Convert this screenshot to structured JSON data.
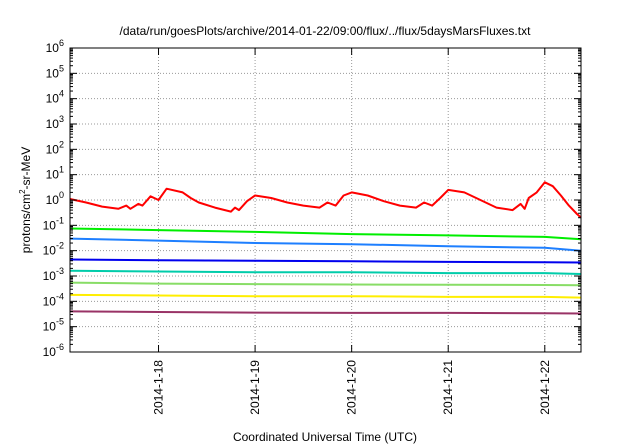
{
  "chart_data": {
    "type": "line",
    "title": "/data/run/goesPlots/archive/2014-01-22/09:00/flux/../flux/5daysMarsFluxes.txt",
    "xlabel": "Coordinated Universal Time (UTC)",
    "ylabel": {
      "prefix": "protons/cm",
      "superscript": "2",
      "suffix": "-sr-MeV"
    },
    "yscale": "log",
    "ylim": [
      1e-06,
      1000000.0
    ],
    "xlim": [
      "2014-01-17 02:00",
      "2014-01-22 09:00"
    ],
    "grid": "dotted",
    "legend": "none",
    "x_ticks": [
      "2014-1-18",
      "2014-1-19",
      "2014-1-20",
      "2014-1-21",
      "2014-1-22"
    ],
    "y_ticks": [
      {
        "base": "10",
        "exp": "-6"
      },
      {
        "base": "10",
        "exp": "-5"
      },
      {
        "base": "10",
        "exp": "-4"
      },
      {
        "base": "10",
        "exp": "-3"
      },
      {
        "base": "10",
        "exp": "-2"
      },
      {
        "base": "10",
        "exp": "-1"
      },
      {
        "base": "10",
        "exp": "0"
      },
      {
        "base": "10",
        "exp": "1"
      },
      {
        "base": "10",
        "exp": "2"
      },
      {
        "base": "10",
        "exp": "3"
      },
      {
        "base": "10",
        "exp": "4"
      },
      {
        "base": "10",
        "exp": "5"
      },
      {
        "base": "10",
        "exp": "6"
      }
    ],
    "series": [
      {
        "color": "#ff0000",
        "points": [
          [
            "2014-01-17 02:00",
            1.1
          ],
          [
            "2014-01-17 06:00",
            0.8
          ],
          [
            "2014-01-17 10:00",
            0.55
          ],
          [
            "2014-01-17 14:00",
            0.45
          ],
          [
            "2014-01-17 16:00",
            0.6
          ],
          [
            "2014-01-17 17:00",
            0.45
          ],
          [
            "2014-01-17 19:00",
            0.7
          ],
          [
            "2014-01-17 20:00",
            0.6
          ],
          [
            "2014-01-17 22:00",
            1.4
          ],
          [
            "2014-01-18 00:00",
            1.0
          ],
          [
            "2014-01-18 02:00",
            2.8
          ],
          [
            "2014-01-18 06:00",
            2.0
          ],
          [
            "2014-01-18 08:00",
            1.2
          ],
          [
            "2014-01-18 10:00",
            0.8
          ],
          [
            "2014-01-18 14:00",
            0.5
          ],
          [
            "2014-01-18 18:00",
            0.35
          ],
          [
            "2014-01-18 19:00",
            0.5
          ],
          [
            "2014-01-18 20:00",
            0.4
          ],
          [
            "2014-01-18 22:00",
            0.9
          ],
          [
            "2014-01-19 00:00",
            1.5
          ],
          [
            "2014-01-19 04:00",
            1.2
          ],
          [
            "2014-01-19 08:00",
            0.8
          ],
          [
            "2014-01-19 12:00",
            0.6
          ],
          [
            "2014-01-19 16:00",
            0.5
          ],
          [
            "2014-01-19 18:00",
            0.8
          ],
          [
            "2014-01-19 20:00",
            0.6
          ],
          [
            "2014-01-19 22:00",
            1.5
          ],
          [
            "2014-01-20 00:00",
            2.0
          ],
          [
            "2014-01-20 04:00",
            1.5
          ],
          [
            "2014-01-20 08:00",
            0.9
          ],
          [
            "2014-01-20 12:00",
            0.6
          ],
          [
            "2014-01-20 16:00",
            0.5
          ],
          [
            "2014-01-20 18:00",
            0.8
          ],
          [
            "2014-01-20 20:00",
            0.6
          ],
          [
            "2014-01-20 22:00",
            1.2
          ],
          [
            "2014-01-21 00:00",
            2.5
          ],
          [
            "2014-01-21 04:00",
            2.0
          ],
          [
            "2014-01-21 08:00",
            1.0
          ],
          [
            "2014-01-21 12:00",
            0.5
          ],
          [
            "2014-01-21 16:00",
            0.4
          ],
          [
            "2014-01-21 18:00",
            0.7
          ],
          [
            "2014-01-21 19:00",
            0.45
          ],
          [
            "2014-01-21 20:00",
            1.2
          ],
          [
            "2014-01-21 22:00",
            2.0
          ],
          [
            "2014-01-22 00:00",
            5.0
          ],
          [
            "2014-01-22 02:00",
            3.5
          ],
          [
            "2014-01-22 04:00",
            1.5
          ],
          [
            "2014-01-22 06:00",
            0.6
          ],
          [
            "2014-01-22 08:00",
            0.28
          ],
          [
            "2014-01-22 09:00",
            0.2
          ]
        ]
      },
      {
        "color": "#00ee00",
        "points": [
          [
            "2014-01-17 02:00",
            0.075
          ],
          [
            "2014-01-18 00:00",
            0.065
          ],
          [
            "2014-01-19 00:00",
            0.055
          ],
          [
            "2014-01-20 00:00",
            0.045
          ],
          [
            "2014-01-21 00:00",
            0.04
          ],
          [
            "2014-01-22 00:00",
            0.035
          ],
          [
            "2014-01-22 09:00",
            0.028
          ]
        ]
      },
      {
        "color": "#1e7fff",
        "points": [
          [
            "2014-01-17 02:00",
            0.03
          ],
          [
            "2014-01-18 00:00",
            0.025
          ],
          [
            "2014-01-19 00:00",
            0.02
          ],
          [
            "2014-01-20 00:00",
            0.018
          ],
          [
            "2014-01-21 00:00",
            0.015
          ],
          [
            "2014-01-22 00:00",
            0.013
          ],
          [
            "2014-01-22 09:00",
            0.01
          ]
        ]
      },
      {
        "color": "#0000ee",
        "points": [
          [
            "2014-01-17 02:00",
            0.0045
          ],
          [
            "2014-01-18 00:00",
            0.0042
          ],
          [
            "2014-01-19 00:00",
            0.004
          ],
          [
            "2014-01-20 00:00",
            0.0038
          ],
          [
            "2014-01-21 00:00",
            0.0036
          ],
          [
            "2014-01-22 00:00",
            0.0035
          ],
          [
            "2014-01-22 09:00",
            0.0034
          ]
        ]
      },
      {
        "color": "#00ccaa",
        "points": [
          [
            "2014-01-17 02:00",
            0.0016
          ],
          [
            "2014-01-18 00:00",
            0.0015
          ],
          [
            "2014-01-19 00:00",
            0.0014
          ],
          [
            "2014-01-20 00:00",
            0.0014
          ],
          [
            "2014-01-21 00:00",
            0.0013
          ],
          [
            "2014-01-22 00:00",
            0.0013
          ],
          [
            "2014-01-22 09:00",
            0.0012
          ]
        ]
      },
      {
        "color": "#88dd66",
        "points": [
          [
            "2014-01-17 02:00",
            0.00055
          ],
          [
            "2014-01-18 00:00",
            0.0005
          ],
          [
            "2014-01-19 00:00",
            0.00048
          ],
          [
            "2014-01-20 00:00",
            0.00046
          ],
          [
            "2014-01-21 00:00",
            0.00045
          ],
          [
            "2014-01-22 00:00",
            0.00044
          ],
          [
            "2014-01-22 09:00",
            0.00043
          ]
        ]
      },
      {
        "color": "#ffee00",
        "points": [
          [
            "2014-01-17 02:00",
            0.00018
          ],
          [
            "2014-01-18 00:00",
            0.00017
          ],
          [
            "2014-01-19 00:00",
            0.00016
          ],
          [
            "2014-01-20 00:00",
            0.00016
          ],
          [
            "2014-01-21 00:00",
            0.00015
          ],
          [
            "2014-01-22 00:00",
            0.00015
          ],
          [
            "2014-01-22 09:00",
            0.00014
          ]
        ]
      },
      {
        "color": "#993366",
        "points": [
          [
            "2014-01-17 02:00",
            4e-05
          ],
          [
            "2014-01-18 00:00",
            3.8e-05
          ],
          [
            "2014-01-19 00:00",
            3.6e-05
          ],
          [
            "2014-01-20 00:00",
            3.5e-05
          ],
          [
            "2014-01-21 00:00",
            3.5e-05
          ],
          [
            "2014-01-22 00:00",
            3.4e-05
          ],
          [
            "2014-01-22 09:00",
            3.3e-05
          ]
        ]
      }
    ]
  }
}
